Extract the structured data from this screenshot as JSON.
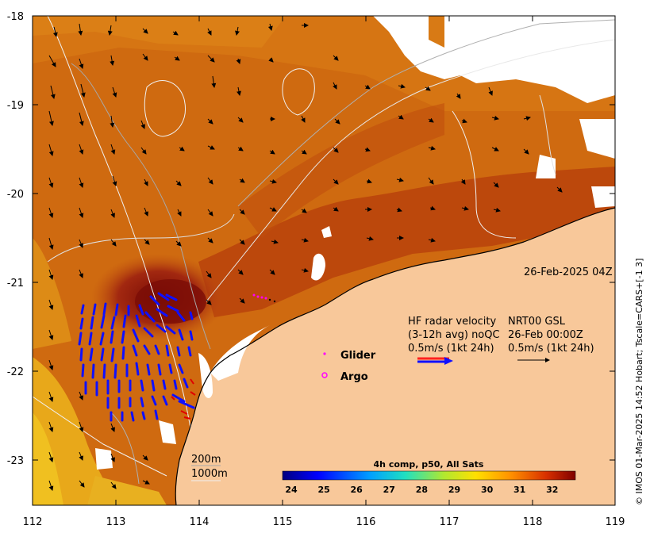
{
  "map": {
    "lon_ticks": [
      "112",
      "113",
      "114",
      "115",
      "116",
      "117",
      "118",
      "119"
    ],
    "lat_ticks": [
      "-18",
      "-19",
      "-20",
      "-21",
      "-22",
      "-23"
    ],
    "timestamp": "26-Feb-2025 04Z",
    "credit": "© IMOS 01-Mar-2025 14:52 Hobart; Tscale=CARS+[-1 3]",
    "colors": {
      "land": "#f8c89a",
      "sea_warm": "#c85a10",
      "sea_hot": "#8a1208",
      "sea_mid": "#d8780f",
      "sea_cool": "#e8a81a",
      "no_data": "#ffffff"
    }
  },
  "hf_radar": {
    "title_line1": "HF radar velocity",
    "title_line2": "(3-12h avg) noQC",
    "scale_label": "0.5m/s (1kt 24h)",
    "color": "#1010ff"
  },
  "nrt": {
    "title_line1": "NRT00 GSL",
    "title_line2": "26-Feb 00:00Z",
    "scale_label": "0.5m/s (1kt 24h)"
  },
  "legend": {
    "glider_label": "Glider",
    "argo_label": "Argo",
    "glider_color": "#ff00ff",
    "argo_color": "#ff00ff"
  },
  "contours": {
    "label_200": "200m",
    "label_1000": "1000m"
  },
  "colorbar": {
    "title": "4h comp, p50, All Sats",
    "ticks": [
      "24",
      "25",
      "26",
      "27",
      "28",
      "29",
      "30",
      "31",
      "32"
    ]
  }
}
